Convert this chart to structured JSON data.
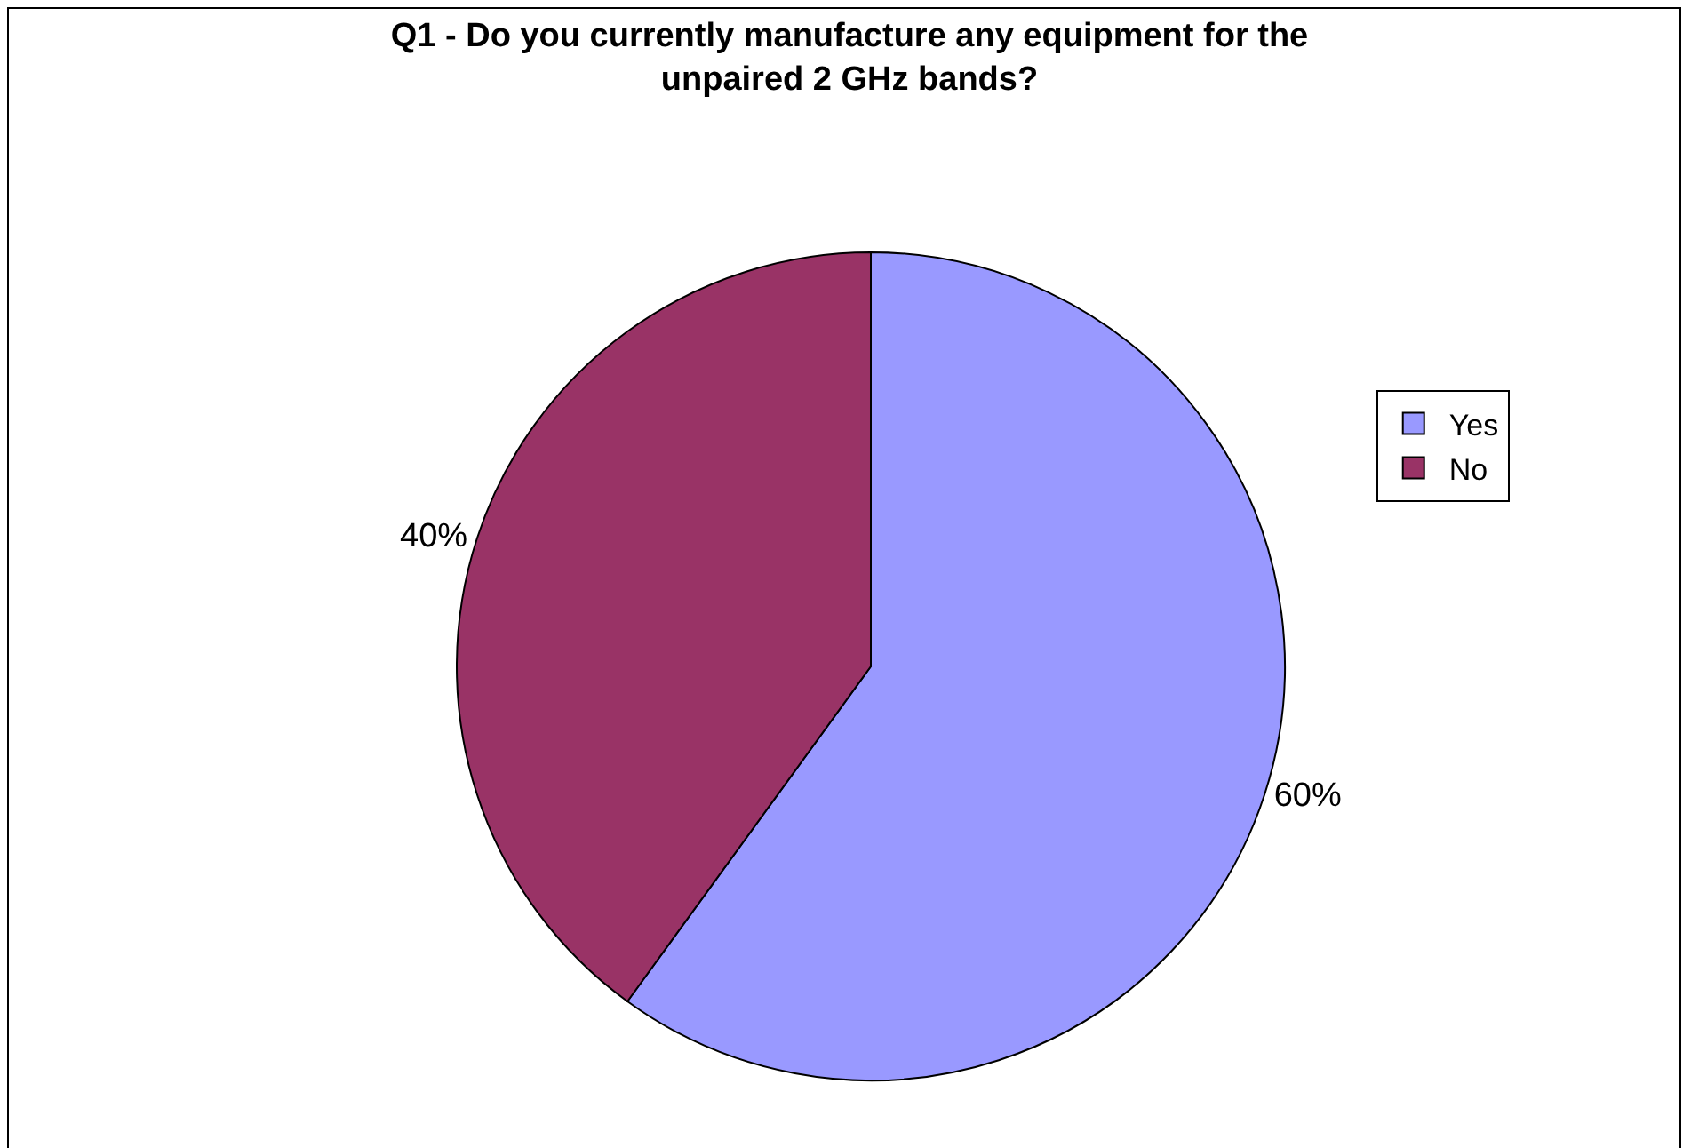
{
  "chart_data": {
    "type": "pie",
    "title": "Q1 - Do you currently manufacture any equipment for the unpaired 2 GHz bands?",
    "categories": [
      "Yes",
      "No"
    ],
    "values": [
      60,
      40
    ],
    "colors": [
      "#9999ff",
      "#993366"
    ],
    "value_labels": [
      "60%",
      "40%"
    ],
    "legend": "right"
  }
}
